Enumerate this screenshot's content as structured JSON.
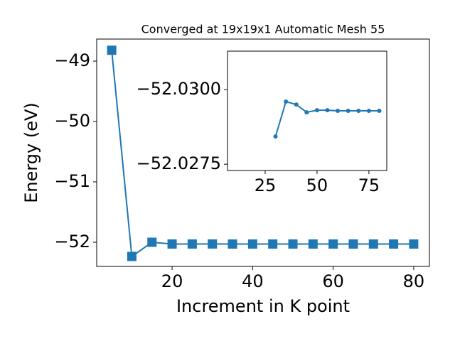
{
  "chart_data": [
    {
      "type": "line",
      "title": "Converged at 19x19x1 Automatic Mesh 55",
      "x_label": "Increment in K point",
      "y_label": "Energy (eV)",
      "x": [
        5,
        10,
        15,
        20,
        25,
        30,
        35,
        40,
        45,
        50,
        55,
        60,
        65,
        70,
        75,
        80
      ],
      "series": [
        {
          "color": "#1f77b4",
          "marker": "square",
          "values": [
            -48.82,
            -52.235,
            -52.0,
            -52.029,
            -52.029,
            -52.0284,
            -52.0296,
            -52.0295,
            -52.0292,
            -52.0293,
            -52.0293,
            -52.0293,
            -52.0293,
            -52.0293,
            -52.0293,
            -52.0293
          ]
        }
      ],
      "xlim": [
        1.27,
        83.9
      ],
      "xticks": [
        20,
        40,
        60,
        80
      ],
      "ylim": [
        -52.4,
        -48.635
      ],
      "yticks": [
        {
          "value": -52,
          "label": "−52"
        },
        {
          "value": -51,
          "label": "−51"
        },
        {
          "value": -50,
          "label": "−50"
        },
        {
          "value": -49,
          "label": "−49"
        }
      ]
    },
    {
      "type": "line",
      "x": [
        30,
        35,
        40,
        45,
        50,
        55,
        60,
        65,
        70,
        75,
        80
      ],
      "series": [
        {
          "color": "#1f77b4",
          "marker": "circle",
          "values": [
            -52.02843,
            -52.0296,
            -52.0295,
            -52.02924,
            -52.02931,
            -52.02931,
            -52.02929,
            -52.02929,
            -52.02929,
            -52.02929,
            -52.02929
          ]
        }
      ],
      "xlim": [
        6.85,
        83.6
      ],
      "xticks": [
        25,
        50,
        75
      ],
      "ylim": [
        -52.02729,
        -52.03129
      ],
      "yticks": [
        {
          "value": -52.0275,
          "label": "−52.0275"
        },
        {
          "value": -52.03,
          "label": "−52.0300"
        }
      ]
    }
  ]
}
